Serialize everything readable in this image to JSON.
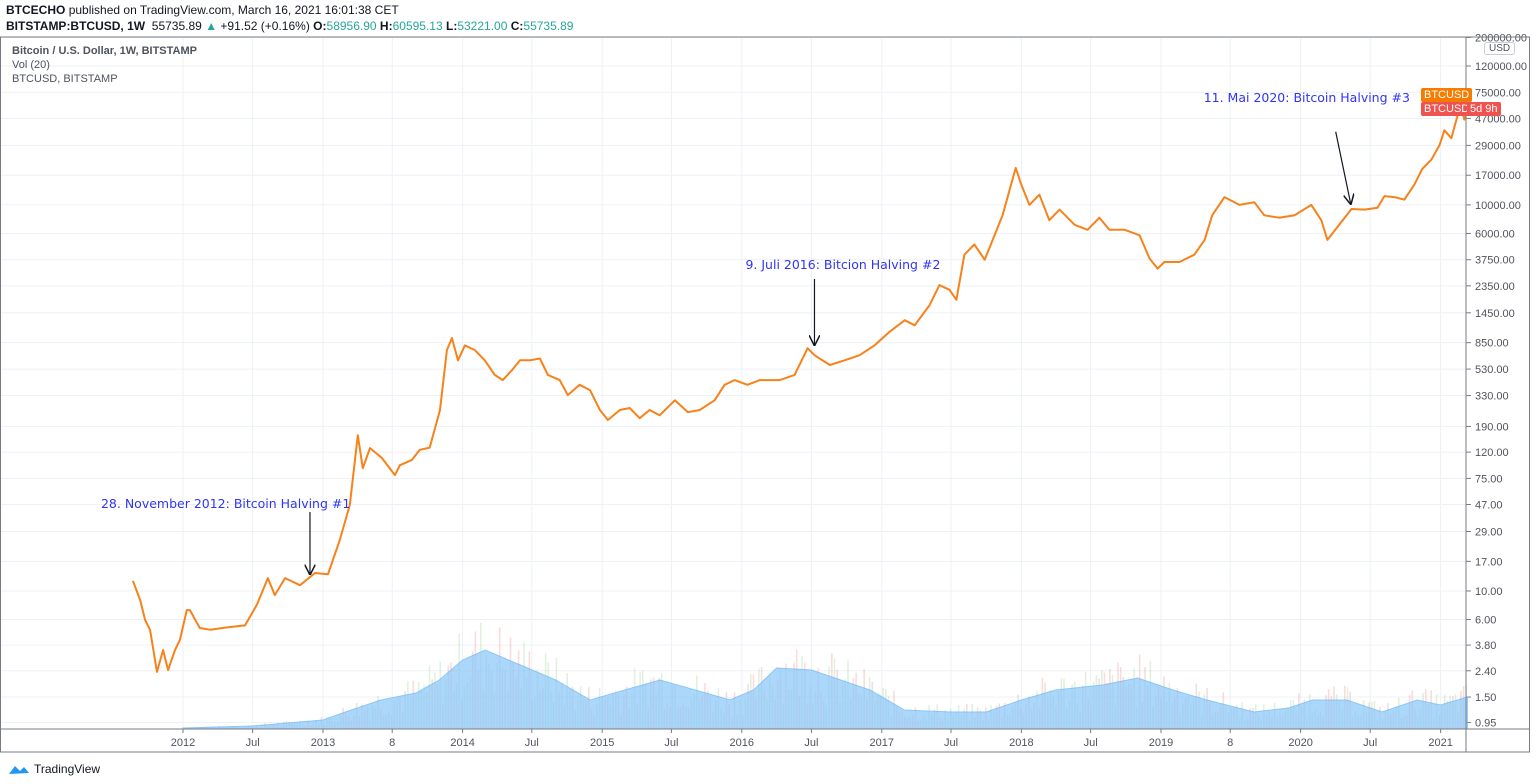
{
  "header": {
    "publisher": "BTCECHO",
    "published_text": "published on TradingView.com, March 16, 2021 16:01:38 CET",
    "symbol": "BITSTAMP:BTCUSD, 1W",
    "last": "55735.89",
    "change_icon": "triangle-up-icon",
    "change": "+91.52 (+0.16%)",
    "open_label": "O:",
    "open": "58956.90",
    "high_label": "H:",
    "high": "60595.13",
    "low_label": "L:",
    "low": "53221.00",
    "close_label": "C:",
    "close": "55735.89"
  },
  "legend": {
    "title": "Bitcoin / U.S. Dollar, 1W, BITSTAMP",
    "indicator": "Vol (20)",
    "compare": "BTCUSD, BITSTAMP"
  },
  "price_tags": {
    "tag1": "BTCUSD",
    "tag2": "BTCUSD",
    "countdown": "5d 9h"
  },
  "currency_label": "USD",
  "branding": "TradingView",
  "colors": {
    "line": "#f7821b",
    "volume_ma": "#90caf9",
    "annotation": "#2f35f5",
    "tag_orange": "#f57c00",
    "tag_red": "#ef5350",
    "up": "#26a69a"
  },
  "chart_data": {
    "type": "line",
    "title": "Bitcoin / U.S. Dollar, 1W, BITSTAMP",
    "y_scale": "log",
    "ylim": [
      0.9,
      220000
    ],
    "xlim": [
      "2011-06-01",
      "2021-03-20"
    ],
    "grid": true,
    "y_ticks": [
      "200000.00",
      "120000.00",
      "75000.00",
      "47000.00",
      "29000.00",
      "17000.00",
      "10000.00",
      "6000.00",
      "3750.00",
      "2350.00",
      "1450.00",
      "850.00",
      "530.00",
      "330.00",
      "190.00",
      "120.00",
      "75.00",
      "47.00",
      "29.00",
      "17.00",
      "10.00",
      "6.00",
      "3.80",
      "2.40",
      "1.50",
      "0.95"
    ],
    "x_ticks": [
      {
        "label": "2012",
        "date": "2012-01-01"
      },
      {
        "label": "Jul",
        "date": "2012-07-01"
      },
      {
        "label": "2013",
        "date": "2013-01-01"
      },
      {
        "label": "8",
        "date": "2013-07-01"
      },
      {
        "label": "2014",
        "date": "2014-01-01"
      },
      {
        "label": "Jul",
        "date": "2014-07-01"
      },
      {
        "label": "2015",
        "date": "2015-01-01"
      },
      {
        "label": "Jul",
        "date": "2015-07-01"
      },
      {
        "label": "2016",
        "date": "2016-01-01"
      },
      {
        "label": "Jul",
        "date": "2016-07-01"
      },
      {
        "label": "2017",
        "date": "2017-01-01"
      },
      {
        "label": "Jul",
        "date": "2017-07-01"
      },
      {
        "label": "2018",
        "date": "2018-01-01"
      },
      {
        "label": "Jul",
        "date": "2018-07-01"
      },
      {
        "label": "2019",
        "date": "2019-01-01"
      },
      {
        "label": "8",
        "date": "2019-07-01"
      },
      {
        "label": "2020",
        "date": "2020-01-01"
      },
      {
        "label": "Jul",
        "date": "2020-07-01"
      },
      {
        "label": "2021",
        "date": "2021-01-01"
      }
    ],
    "series": [
      {
        "x": [
          "2011-08-23",
          "2011-09-11",
          "2011-09-24",
          "2011-10-07",
          "2011-10-25",
          "2011-11-10",
          "2011-11-23",
          "2011-12-11",
          "2011-12-24",
          "2012-01-11",
          "2012-01-19",
          "2012-02-14",
          "2012-03-12",
          "2012-04-20",
          "2012-06-11",
          "2012-07-12",
          "2012-08-10",
          "2012-08-28",
          "2012-09-24",
          "2012-11-02",
          "2012-12-11",
          "2013-01-14",
          "2013-02-14",
          "2013-03-12",
          "2013-04-02",
          "2013-04-15",
          "2013-05-04",
          "2013-06-04",
          "2013-07-08",
          "2013-07-21",
          "2013-08-21",
          "2013-09-11",
          "2013-10-07",
          "2013-11-03",
          "2013-11-21",
          "2013-12-04",
          "2013-12-20",
          "2014-01-07",
          "2014-02-02",
          "2014-02-28",
          "2014-03-26",
          "2014-04-16",
          "2014-05-10",
          "2014-05-31",
          "2014-06-26",
          "2014-07-22",
          "2014-08-12",
          "2014-09-12",
          "2014-10-03",
          "2014-11-03",
          "2014-11-30",
          "2014-12-26",
          "2015-01-16",
          "2015-02-16",
          "2015-03-14",
          "2015-04-09",
          "2015-05-05",
          "2015-05-31",
          "2015-07-10",
          "2015-08-13",
          "2015-09-13",
          "2015-10-22",
          "2015-11-17",
          "2015-12-13",
          "2016-01-16",
          "2016-02-17",
          "2016-04-09",
          "2016-05-18",
          "2016-06-21",
          "2016-07-09",
          "2016-08-18",
          "2016-09-26",
          "2016-11-04",
          "2016-12-13",
          "2017-01-21",
          "2017-03-02",
          "2017-03-28",
          "2017-05-06",
          "2017-06-01",
          "2017-06-27",
          "2017-07-15",
          "2017-08-05",
          "2017-08-31",
          "2017-09-27",
          "2017-10-18",
          "2017-11-13",
          "2017-12-01",
          "2017-12-17",
          "2018-01-01",
          "2018-01-22",
          "2018-02-17",
          "2018-03-15",
          "2018-04-11",
          "2018-05-20",
          "2018-06-23",
          "2018-07-24",
          "2018-08-19",
          "2018-09-28",
          "2018-11-06",
          "2018-12-02",
          "2018-12-23",
          "2019-01-10",
          "2019-02-18",
          "2019-03-29",
          "2019-04-25",
          "2019-05-15",
          "2019-06-16",
          "2019-07-25",
          "2019-09-02",
          "2019-09-28",
          "2019-11-06",
          "2019-12-16",
          "2020-01-29",
          "2020-02-24",
          "2020-03-11",
          "2020-04-11",
          "2020-05-13",
          "2020-06-16",
          "2020-07-20",
          "2020-08-07",
          "2020-09-02",
          "2020-09-28",
          "2020-10-24",
          "2020-11-14",
          "2020-12-08",
          "2020-12-29",
          "2021-01-11",
          "2021-01-29",
          "2021-02-14",
          "2021-02-24",
          "2021-03-04",
          "2021-03-12"
        ],
        "y": [
          12.0,
          8.5,
          5.95,
          4.97,
          2.35,
          3.48,
          2.43,
          3.48,
          4.16,
          7.1,
          7.1,
          5.16,
          5.0,
          5.2,
          5.4,
          7.8,
          12.6,
          9.3,
          12.6,
          11.1,
          13.8,
          13.5,
          24.9,
          46.6,
          162,
          90,
          129,
          108,
          79.6,
          95,
          104,
          125,
          130,
          255,
          745,
          925,
          620,
          810,
          745,
          620,
          478,
          435,
          520,
          620,
          620,
          640,
          478,
          435,
          333,
          400,
          364,
          255,
          213,
          255,
          264,
          220,
          255,
          232,
          303,
          245,
          255,
          303,
          400,
          435,
          400,
          435,
          435,
          478,
          770,
          680,
          570,
          620,
          680,
          810,
          1030,
          1270,
          1160,
          1665,
          2380,
          2190,
          1830,
          4100,
          4930,
          3750,
          5350,
          8300,
          13000,
          19400,
          14300,
          10000,
          12000,
          7600,
          9200,
          7000,
          6400,
          7950,
          6400,
          6400,
          5800,
          3840,
          3200,
          3600,
          3600,
          4100,
          5350,
          8300,
          11500,
          10000,
          10500,
          8300,
          7950,
          8300,
          10000,
          7600,
          5350,
          7000,
          9300,
          9200,
          9500,
          11700,
          11500,
          11000,
          14300,
          19000,
          22500,
          29000,
          38000,
          33000,
          49000,
          58000,
          46000,
          55735.89
        ]
      }
    ],
    "volume_ma": {
      "x": [
        "2012-01-01",
        "2012-07-01",
        "2013-01-01",
        "2013-03-01",
        "2013-06-01",
        "2013-09-01",
        "2013-11-01",
        "2014-01-01",
        "2014-03-01",
        "2014-06-01",
        "2014-09-01",
        "2014-12-01",
        "2015-03-01",
        "2015-06-01",
        "2015-09-01",
        "2015-12-01",
        "2016-02-01",
        "2016-04-01",
        "2016-07-01",
        "2016-12-01",
        "2017-03-01",
        "2017-07-01",
        "2017-10-01",
        "2018-01-01",
        "2018-04-01",
        "2018-08-01",
        "2018-11-01",
        "2019-02-01",
        "2019-05-01",
        "2019-09-01",
        "2019-12-01",
        "2020-02-01",
        "2020-05-01",
        "2020-08-01",
        "2020-11-01",
        "2021-01-01",
        "2021-03-12"
      ],
      "values": [
        1,
        3,
        9,
        17,
        29,
        36,
        49,
        69,
        79,
        64,
        49,
        29,
        39,
        49,
        39,
        29,
        39,
        61,
        59,
        39,
        19,
        17,
        17,
        29,
        39,
        44,
        51,
        39,
        29,
        17,
        21,
        29,
        29,
        17,
        29,
        24,
        32
      ]
    },
    "annotations": [
      {
        "text": "28. November 2012: Bitcoin Halving #1",
        "date": "2012-11-28",
        "price": 12.6
      },
      {
        "text": "9. Juli 2016: Bitcion Halving #2",
        "date": "2016-07-09",
        "price": 760
      },
      {
        "text": "11. Mai 2020: Bitcoin Halving #3",
        "date": "2020-05-11",
        "price": 9500
      }
    ]
  }
}
